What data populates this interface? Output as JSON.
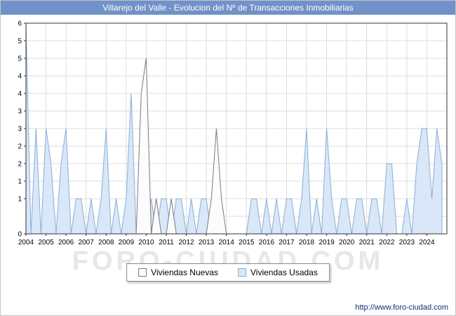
{
  "title_bar": {
    "title": "Villarejo del Valle - Evolucion del Nº de Transacciones Inmobiliarias",
    "bg": "#7092c8",
    "text_color": "#ffffff"
  },
  "watermark": "FORO-CIUDAD.COM",
  "footer": {
    "url": "http://www.foro-ciudad.com"
  },
  "legend": {
    "items": [
      {
        "label": "Viviendas Nuevas",
        "fill": "#fcfcfc",
        "stroke": "#7a7a7a"
      },
      {
        "label": "Viviendas Usadas",
        "fill": "#d9e7f8",
        "stroke": "#89aed6"
      }
    ]
  },
  "chart_data": {
    "type": "area",
    "title": "Villarejo del Valle - Evolucion del Nº de Transacciones Inmobiliarias",
    "xlabel": "",
    "ylabel": "",
    "ylim": [
      0,
      6
    ],
    "grid": true,
    "grid_step_y": 0.5,
    "grid_color": "#dcdcdc",
    "axis_color": "#333333",
    "legend_position": "bottom",
    "x_domain": [
      2004,
      2025
    ],
    "points_per_year": 4,
    "x_years": [
      2004,
      2005,
      2006,
      2007,
      2008,
      2009,
      2010,
      2011,
      2012,
      2013,
      2014,
      2015,
      2016,
      2017,
      2018,
      2019,
      2020,
      2021,
      2022,
      2023,
      2024
    ],
    "yticks": [
      {
        "value": 6,
        "label": "6"
      },
      {
        "value": 5.5,
        "label": "5"
      },
      {
        "value": 5,
        "label": "5"
      },
      {
        "value": 4.5,
        "label": "4"
      },
      {
        "value": 4,
        "label": "4"
      },
      {
        "value": 3.5,
        "label": "3"
      },
      {
        "value": 3,
        "label": "3"
      },
      {
        "value": 2.5,
        "label": "2"
      },
      {
        "value": 2,
        "label": "2"
      },
      {
        "value": 1.5,
        "label": "1"
      },
      {
        "value": 1,
        "label": "1"
      },
      {
        "value": 0,
        "label": "0"
      }
    ],
    "series": [
      {
        "name": "Viviendas Nuevas",
        "fill": "#fcfcfc",
        "stroke": "#7a7a7a",
        "values": [
          0,
          0,
          0,
          0,
          0,
          0,
          0,
          0,
          0,
          0,
          0,
          0,
          0,
          0,
          0,
          0,
          0,
          0,
          0,
          0,
          0,
          0,
          0,
          4,
          5,
          0,
          1,
          0,
          0,
          1,
          0,
          0,
          0,
          0,
          0,
          0,
          0,
          1,
          3,
          1,
          0,
          0,
          0,
          0,
          0,
          0,
          0,
          0,
          0,
          0,
          0,
          0,
          0,
          0,
          0,
          0,
          0,
          0,
          0,
          0,
          0,
          0,
          0,
          0,
          0,
          0,
          0,
          0,
          0,
          0,
          0,
          0,
          0,
          0,
          0,
          0,
          0,
          0,
          0,
          0,
          0,
          0,
          0,
          0
        ]
      },
      {
        "name": "Viviendas Usadas",
        "fill": "#d9e7f8",
        "stroke": "#89aed6",
        "values": [
          6,
          0,
          3,
          0,
          3,
          2,
          0,
          2,
          3,
          0,
          1,
          1,
          0,
          1,
          0,
          1,
          3,
          0,
          1,
          0,
          1,
          4,
          0,
          1,
          0,
          1,
          0,
          1,
          1,
          0,
          1,
          1,
          0,
          1,
          0,
          1,
          1,
          0,
          0,
          0,
          0,
          0,
          0,
          0,
          0,
          1,
          1,
          0,
          1,
          0,
          1,
          0,
          1,
          1,
          0,
          1,
          3,
          0,
          1,
          0,
          3,
          1,
          0,
          1,
          1,
          0,
          1,
          1,
          0,
          1,
          1,
          0,
          2,
          2,
          0,
          0,
          1,
          0,
          2,
          3,
          3,
          1,
          3,
          2
        ]
      }
    ]
  }
}
